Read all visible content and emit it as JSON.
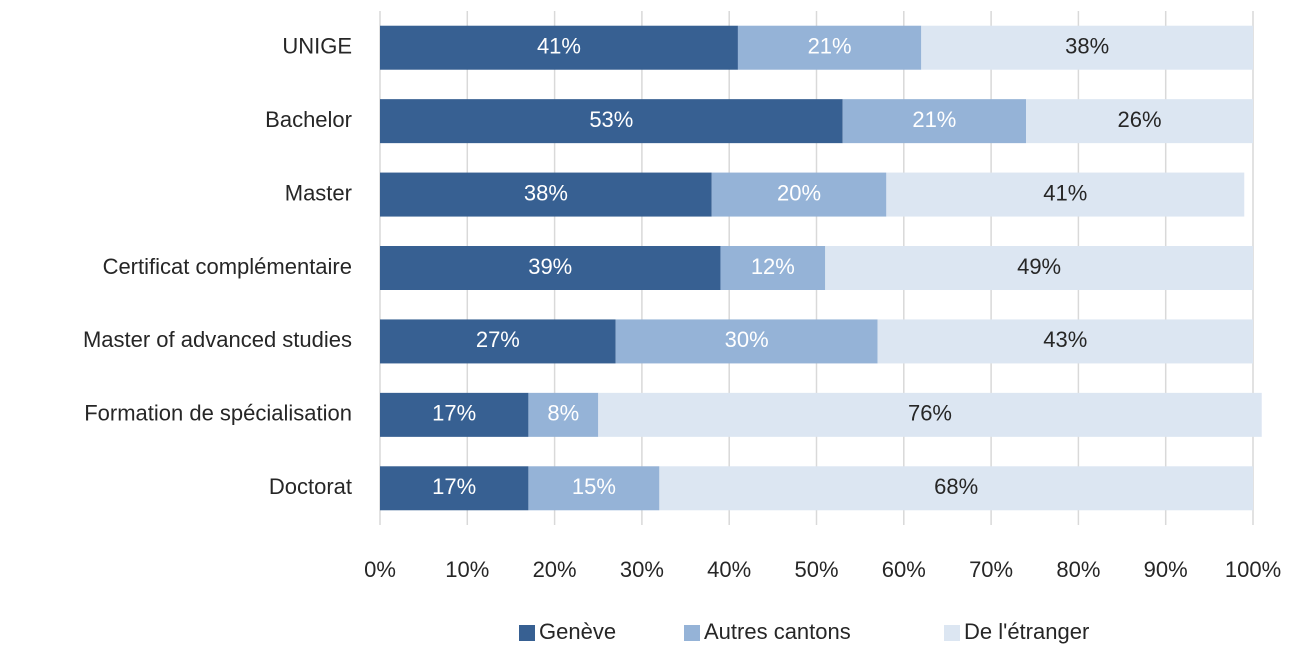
{
  "chart_data": {
    "type": "stacked_barh",
    "categories": [
      "UNIGE",
      "Bachelor",
      "Master",
      "Certificat complémentaire",
      "Master of advanced studies",
      "Formation de spécialisation",
      "Doctorat"
    ],
    "series": [
      {
        "name": "Genève",
        "color": "#376092",
        "label_color": "#ffffff",
        "values": [
          41,
          53,
          38,
          39,
          27,
          17,
          17
        ],
        "value_labels": [
          "41%",
          "53%",
          "38%",
          "39%",
          "27%",
          "17%",
          "17%"
        ]
      },
      {
        "name": "Autres cantons",
        "color": "#95b3d7",
        "label_color": "#ffffff",
        "values": [
          21,
          21,
          20,
          12,
          30,
          8,
          15
        ],
        "value_labels": [
          "21%",
          "21%",
          "20%",
          "12%",
          "30%",
          "8%",
          "15%"
        ]
      },
      {
        "name": "De l'étranger",
        "color": "#dce6f2",
        "label_color": "#262626",
        "values": [
          38,
          26,
          41,
          49,
          43,
          76,
          68
        ],
        "value_labels": [
          "38%",
          "26%",
          "41%",
          "49%",
          "43%",
          "76%",
          "68%"
        ]
      }
    ],
    "xlim": [
      0,
      100
    ],
    "xticks": [
      {
        "value": 0,
        "label": "0%"
      },
      {
        "value": 10,
        "label": "10%"
      },
      {
        "value": 20,
        "label": "20%"
      },
      {
        "value": 30,
        "label": "30%"
      },
      {
        "value": 40,
        "label": "40%"
      },
      {
        "value": 50,
        "label": "50%"
      },
      {
        "value": 60,
        "label": "60%"
      },
      {
        "value": 70,
        "label": "70%"
      },
      {
        "value": 80,
        "label": "80%"
      },
      {
        "value": 90,
        "label": "90%"
      },
      {
        "value": 100,
        "label": "100%"
      }
    ],
    "grid": true,
    "legend": "bottom"
  }
}
